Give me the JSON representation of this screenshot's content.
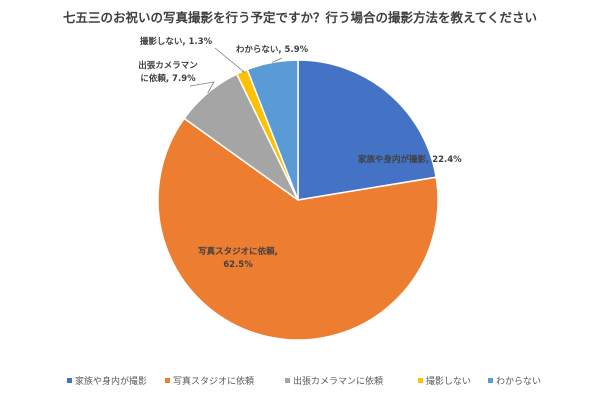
{
  "chart_data": {
    "type": "pie",
    "title": "七五三のお祝いの写真撮影を行う予定ですか？行う場合の撮影方法を教えてください",
    "slices": [
      {
        "key": "family",
        "legend": "家族や身内が撮影",
        "label_lines": [
          "家族や身内が撮影, 22.4%"
        ],
        "value": 22.4,
        "color": "#4472C4"
      },
      {
        "key": "studio",
        "legend": "写真スタジオに依頼",
        "label_lines": [
          "写真スタジオに依頼,",
          "62.5%"
        ],
        "value": 62.5,
        "color": "#ED7D31"
      },
      {
        "key": "cameraman",
        "legend": "出張カメラマンに依頼",
        "label_lines": [
          "出張カメラマン",
          "に依頼, 7.9%"
        ],
        "value": 7.9,
        "color": "#A5A5A5"
      },
      {
        "key": "no-photo",
        "legend": "撮影しない",
        "label_lines": [
          "撮影しない, 1.3%"
        ],
        "value": 1.3,
        "color": "#FFC000"
      },
      {
        "key": "unknown",
        "legend": "わからない",
        "label_lines": [
          "わからない, 5.9%"
        ],
        "value": 5.9,
        "color": "#5B9BD5"
      }
    ],
    "legend_position": "bottom",
    "start_angle": "12 o'clock",
    "direction": "clockwise"
  }
}
